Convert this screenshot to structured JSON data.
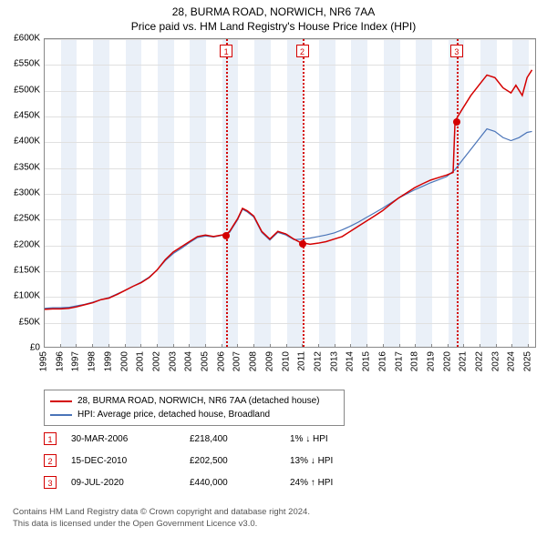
{
  "title": {
    "line1": "28, BURMA ROAD, NORWICH, NR6 7AA",
    "line2": "Price paid vs. HM Land Registry's House Price Index (HPI)",
    "fontsize": 12,
    "color": "#000000"
  },
  "chart": {
    "type": "line",
    "background_color": "#ffffff",
    "band_color": "#eaf0f8",
    "grid_color": "#e0e0e0",
    "axis_color": "#888888",
    "y": {
      "min": 0,
      "max": 600000,
      "step": 50000,
      "labels": [
        "£0",
        "£50K",
        "£100K",
        "£150K",
        "£200K",
        "£250K",
        "£300K",
        "£350K",
        "£400K",
        "£450K",
        "£500K",
        "£550K",
        "£600K"
      ],
      "fontsize": 10
    },
    "x": {
      "min": 1995,
      "max": 2025.5,
      "ticks": [
        1995,
        1996,
        1997,
        1998,
        1999,
        2000,
        2001,
        2002,
        2003,
        2004,
        2005,
        2006,
        2007,
        2008,
        2009,
        2010,
        2011,
        2012,
        2013,
        2014,
        2015,
        2016,
        2017,
        2018,
        2019,
        2020,
        2021,
        2022,
        2023,
        2024,
        2025
      ],
      "fontsize": 10
    },
    "series": [
      {
        "name": "price_paid",
        "label": "28, BURMA ROAD, NORWICH, NR6 7AA (detached house)",
        "color": "#d40000",
        "width": 1.5,
        "points": [
          [
            1995.0,
            73000
          ],
          [
            1995.5,
            74000
          ],
          [
            1996.0,
            74000
          ],
          [
            1996.5,
            75000
          ],
          [
            1997.0,
            78000
          ],
          [
            1997.5,
            82000
          ],
          [
            1998.0,
            86000
          ],
          [
            1998.5,
            92000
          ],
          [
            1999.0,
            95000
          ],
          [
            1999.5,
            102000
          ],
          [
            2000.0,
            110000
          ],
          [
            2000.5,
            118000
          ],
          [
            2001.0,
            125000
          ],
          [
            2001.5,
            135000
          ],
          [
            2002.0,
            150000
          ],
          [
            2002.5,
            170000
          ],
          [
            2003.0,
            185000
          ],
          [
            2003.5,
            195000
          ],
          [
            2004.0,
            205000
          ],
          [
            2004.5,
            215000
          ],
          [
            2005.0,
            218000
          ],
          [
            2005.5,
            215000
          ],
          [
            2006.0,
            218000
          ],
          [
            2006.25,
            218400
          ],
          [
            2006.5,
            225000
          ],
          [
            2007.0,
            250000
          ],
          [
            2007.3,
            270000
          ],
          [
            2007.6,
            265000
          ],
          [
            2008.0,
            255000
          ],
          [
            2008.5,
            225000
          ],
          [
            2009.0,
            210000
          ],
          [
            2009.5,
            225000
          ],
          [
            2010.0,
            220000
          ],
          [
            2010.5,
            210000
          ],
          [
            2010.96,
            202500
          ],
          [
            2011.0,
            203000
          ],
          [
            2011.5,
            200000
          ],
          [
            2012.0,
            202000
          ],
          [
            2012.5,
            205000
          ],
          [
            2013.0,
            210000
          ],
          [
            2013.5,
            215000
          ],
          [
            2014.0,
            225000
          ],
          [
            2014.5,
            235000
          ],
          [
            2015.0,
            245000
          ],
          [
            2015.5,
            255000
          ],
          [
            2016.0,
            265000
          ],
          [
            2016.5,
            278000
          ],
          [
            2017.0,
            290000
          ],
          [
            2017.5,
            300000
          ],
          [
            2018.0,
            310000
          ],
          [
            2018.5,
            318000
          ],
          [
            2019.0,
            325000
          ],
          [
            2019.5,
            330000
          ],
          [
            2020.0,
            335000
          ],
          [
            2020.4,
            340000
          ],
          [
            2020.52,
            440000
          ],
          [
            2020.8,
            455000
          ],
          [
            2021.0,
            465000
          ],
          [
            2021.5,
            490000
          ],
          [
            2022.0,
            510000
          ],
          [
            2022.5,
            530000
          ],
          [
            2023.0,
            525000
          ],
          [
            2023.5,
            505000
          ],
          [
            2024.0,
            495000
          ],
          [
            2024.3,
            510000
          ],
          [
            2024.7,
            490000
          ],
          [
            2025.0,
            525000
          ],
          [
            2025.3,
            540000
          ]
        ]
      },
      {
        "name": "hpi",
        "label": "HPI: Average price, detached house, Broadland",
        "color": "#4a74b8",
        "width": 1.2,
        "points": [
          [
            1995.0,
            75000
          ],
          [
            1995.5,
            76000
          ],
          [
            1996.0,
            76000
          ],
          [
            1996.5,
            77000
          ],
          [
            1997.0,
            80000
          ],
          [
            1997.5,
            83000
          ],
          [
            1998.0,
            87000
          ],
          [
            1998.5,
            92000
          ],
          [
            1999.0,
            96000
          ],
          [
            1999.5,
            103000
          ],
          [
            2000.0,
            110000
          ],
          [
            2000.5,
            118000
          ],
          [
            2001.0,
            126000
          ],
          [
            2001.5,
            136000
          ],
          [
            2002.0,
            150000
          ],
          [
            2002.5,
            168000
          ],
          [
            2003.0,
            182000
          ],
          [
            2003.5,
            192000
          ],
          [
            2004.0,
            203000
          ],
          [
            2004.5,
            213000
          ],
          [
            2005.0,
            216000
          ],
          [
            2005.5,
            214000
          ],
          [
            2006.0,
            217000
          ],
          [
            2006.5,
            223000
          ],
          [
            2007.0,
            248000
          ],
          [
            2007.3,
            268000
          ],
          [
            2007.6,
            263000
          ],
          [
            2008.0,
            253000
          ],
          [
            2008.5,
            223000
          ],
          [
            2009.0,
            208000
          ],
          [
            2009.5,
            223000
          ],
          [
            2010.0,
            218000
          ],
          [
            2010.5,
            209000
          ],
          [
            2011.0,
            210000
          ],
          [
            2011.5,
            212000
          ],
          [
            2012.0,
            215000
          ],
          [
            2012.5,
            218000
          ],
          [
            2013.0,
            222000
          ],
          [
            2013.5,
            228000
          ],
          [
            2014.0,
            235000
          ],
          [
            2014.5,
            243000
          ],
          [
            2015.0,
            252000
          ],
          [
            2015.5,
            261000
          ],
          [
            2016.0,
            270000
          ],
          [
            2016.5,
            280000
          ],
          [
            2017.0,
            290000
          ],
          [
            2017.5,
            298000
          ],
          [
            2018.0,
            306000
          ],
          [
            2018.5,
            313000
          ],
          [
            2019.0,
            320000
          ],
          [
            2019.5,
            326000
          ],
          [
            2020.0,
            332000
          ],
          [
            2020.5,
            345000
          ],
          [
            2021.0,
            365000
          ],
          [
            2021.5,
            385000
          ],
          [
            2022.0,
            405000
          ],
          [
            2022.5,
            425000
          ],
          [
            2023.0,
            420000
          ],
          [
            2023.5,
            408000
          ],
          [
            2024.0,
            402000
          ],
          [
            2024.5,
            408000
          ],
          [
            2025.0,
            418000
          ],
          [
            2025.3,
            420000
          ]
        ]
      }
    ],
    "markers": [
      {
        "n": "1",
        "year": 2006.25,
        "price": 218400,
        "color": "#d40000"
      },
      {
        "n": "2",
        "year": 2010.96,
        "price": 202500,
        "color": "#d40000"
      },
      {
        "n": "3",
        "year": 2020.52,
        "price": 440000,
        "color": "#d40000"
      }
    ]
  },
  "legend": {
    "items": [
      {
        "label": "28, BURMA ROAD, NORWICH, NR6 7AA (detached house)",
        "color": "#d40000"
      },
      {
        "label": "HPI: Average price, detached house, Broadland",
        "color": "#4a74b8"
      }
    ]
  },
  "sales": [
    {
      "n": "1",
      "color": "#d40000",
      "date": "30-MAR-2006",
      "price": "£218,400",
      "hpi_delta": "1%",
      "direction": "down",
      "hpi_suffix": "HPI"
    },
    {
      "n": "2",
      "color": "#d40000",
      "date": "15-DEC-2010",
      "price": "£202,500",
      "hpi_delta": "13%",
      "direction": "down",
      "hpi_suffix": "HPI"
    },
    {
      "n": "3",
      "color": "#d40000",
      "date": "09-JUL-2020",
      "price": "£440,000",
      "hpi_delta": "24%",
      "direction": "up",
      "hpi_suffix": "HPI"
    }
  ],
  "footer": {
    "line1": "Contains HM Land Registry data © Crown copyright and database right 2024.",
    "line2": "This data is licensed under the Open Government Licence v3.0.",
    "color": "#555555"
  }
}
